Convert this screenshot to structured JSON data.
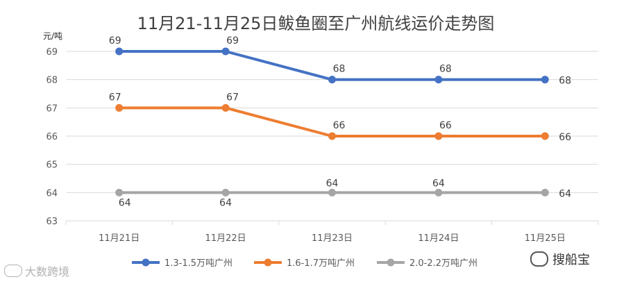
{
  "chart_data": {
    "type": "line",
    "title": "11月21-11月25日鲅鱼圈至广州航线运价走势图",
    "ylabel": "元/吨",
    "xlabel": "",
    "categories": [
      "11月21日",
      "11月22日",
      "11月23日",
      "11月24日",
      "11月25日"
    ],
    "ylim": [
      63,
      69
    ],
    "yticks": [
      "63",
      "64",
      "65",
      "66",
      "67",
      "68",
      "69"
    ],
    "grid": true,
    "legend_position": "bottom",
    "series": [
      {
        "name": "1.3-1.5万吨广州",
        "color": "#4472C4",
        "values": [
          69,
          69,
          68,
          68,
          68
        ]
      },
      {
        "name": "1.6-1.7万吨广州",
        "color": "#ED7D31",
        "values": [
          67,
          67,
          66,
          66,
          66
        ]
      },
      {
        "name": "2.0-2.2万吨广州",
        "color": "#A5A5A5",
        "values": [
          64,
          64,
          64,
          64,
          64
        ]
      }
    ]
  },
  "watermarks": {
    "left": "大数跨境",
    "right": "搜船宝"
  }
}
